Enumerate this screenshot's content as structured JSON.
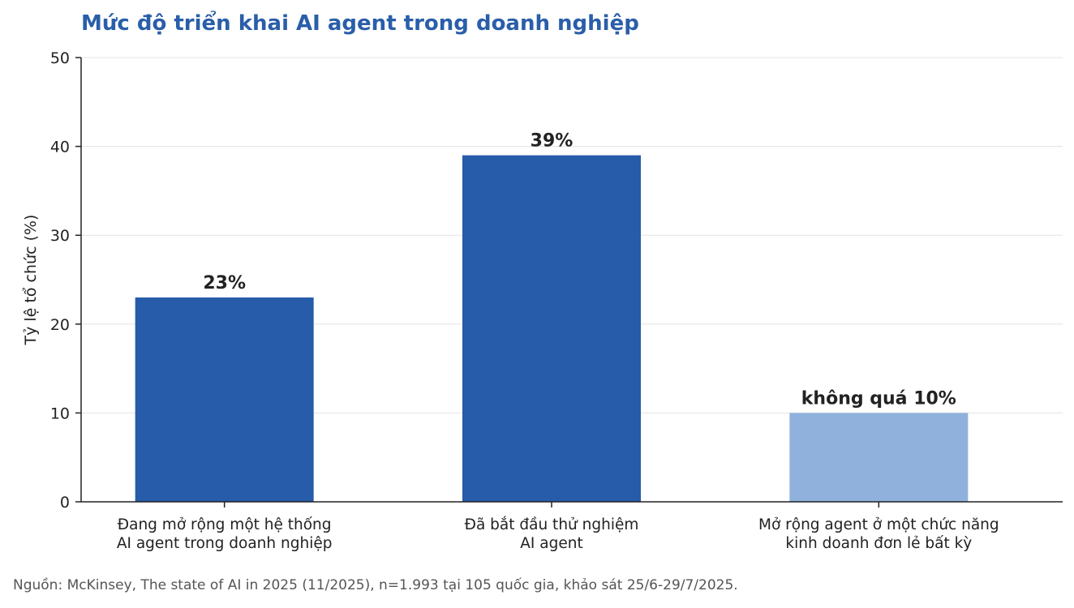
{
  "chart_data": {
    "type": "bar",
    "title": "Mức độ triển khai AI agent trong doanh nghiệp",
    "ylabel": "Tỷ lệ tổ chức (%)",
    "xlabel": "",
    "ylim": [
      0,
      50
    ],
    "yticks": [
      0,
      10,
      20,
      30,
      40,
      50
    ],
    "grid": true,
    "categories": [
      [
        "Đang mở rộng một hệ thống",
        "AI agent trong doanh nghiệp"
      ],
      [
        "Đã bắt đầu thử nghiệm",
        "AI agent"
      ],
      [
        "Mở rộng agent ở một chức năng",
        "kinh doanh đơn lẻ bất kỳ"
      ]
    ],
    "values": [
      23,
      39,
      10
    ],
    "labels": [
      "23%",
      "39%",
      "không quá 10%"
    ],
    "colors": [
      "#265ca9",
      "#265ca9",
      "#8fb1dc"
    ],
    "source": "Nguồn: McKinsey, The state of AI in 2025 (11/2025), n=1.993 tại 105 quốc gia, khảo sát 25/6-29/7/2025."
  }
}
